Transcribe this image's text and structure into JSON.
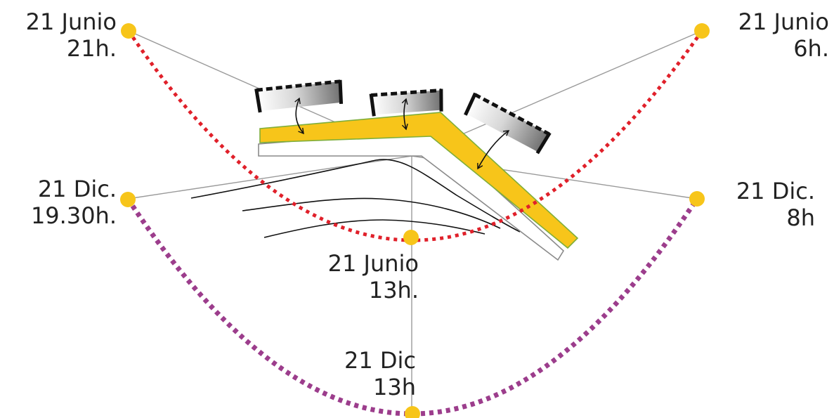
{
  "colors": {
    "sun_marker": "#f7c51a",
    "summer_path": "#e0202a",
    "winter_path": "#9c3d8c",
    "building_fill": "#f7c51a",
    "building_outline": "#7fae3a",
    "ray_line": "#9a9a9a",
    "panel_frame": "#111111"
  },
  "sun_points": [
    {
      "id": "jun-21h",
      "line1": "21 Junio",
      "line2": "21h."
    },
    {
      "id": "jun-6h",
      "line1": "21 Junio",
      "line2": "6h."
    },
    {
      "id": "dic-1930h",
      "line1": "21 Dic.",
      "line2": "19.30h."
    },
    {
      "id": "dic-8h",
      "line1": "21 Dic.",
      "line2": "8h"
    },
    {
      "id": "jun-13h",
      "line1": "21 Junio",
      "line2": "13h."
    },
    {
      "id": "dic-13h",
      "line1": "21 Dic",
      "line2": "13h"
    }
  ]
}
